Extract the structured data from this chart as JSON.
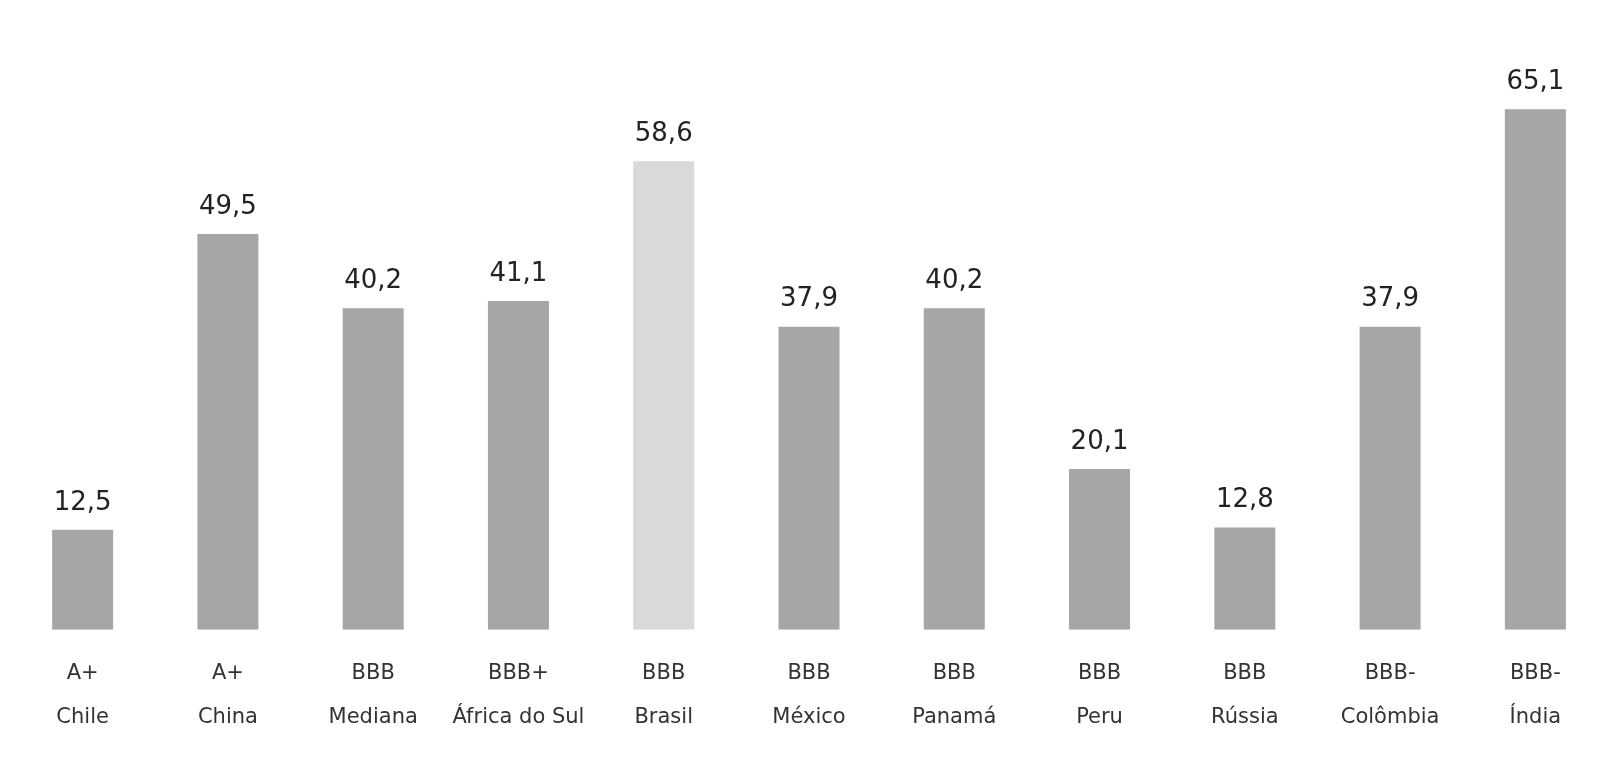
{
  "chart_data": {
    "type": "bar",
    "categories": [
      "A+\nChile",
      "A+\nChina",
      "BBB\nMediana",
      "BBB+\nÁfrica do Sul",
      "BBB\nBrasil",
      "BBB\nMéxico",
      "BBB\nPanamá",
      "BBB\nPeru",
      "BBB\nRússia",
      "BBB-\nColômbia",
      "BBB-\nÍndia"
    ],
    "values": [
      12.5,
      49.5,
      40.2,
      41.1,
      58.6,
      37.9,
      40.2,
      20.1,
      12.8,
      37.9,
      65.1
    ],
    "value_labels": [
      "12,5",
      "49,5",
      "40,2",
      "41,1",
      "58,6",
      "37,9",
      "40,2",
      "20,1",
      "12,8",
      "37,9",
      "65,1"
    ],
    "colors": [
      "#a6a6a6",
      "#a6a6a6",
      "#a6a6a6",
      "#a6a6a6",
      "#d9d9d9",
      "#a6a6a6",
      "#a6a6a6",
      "#a6a6a6",
      "#a6a6a6",
      "#a6a6a6",
      "#a6a6a6"
    ],
    "grid": false,
    "legend": false
  }
}
